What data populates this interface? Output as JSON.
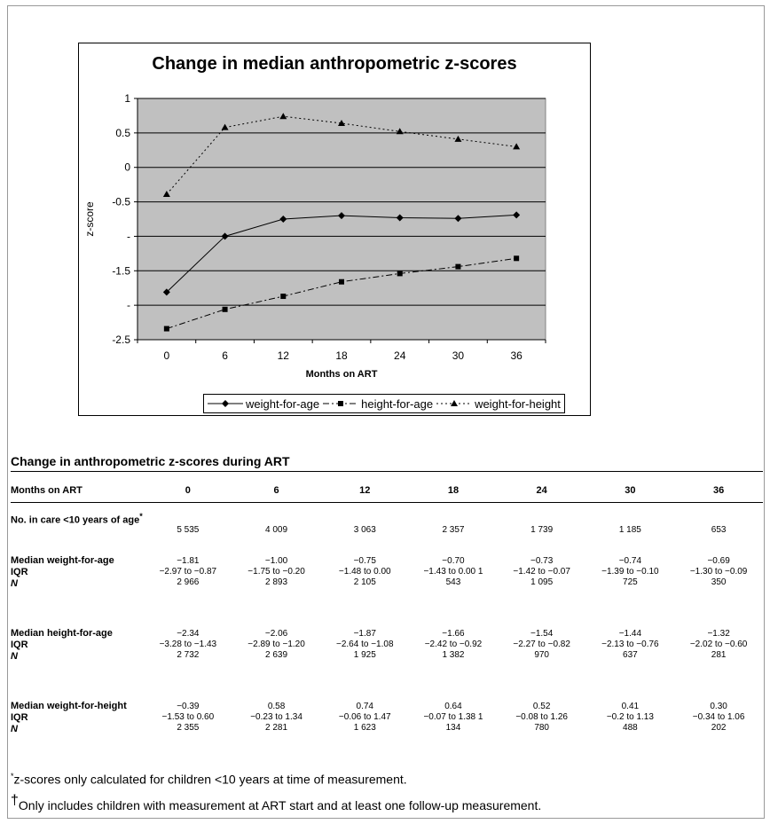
{
  "chart_data": {
    "type": "line",
    "title": "Change in median anthropometric z-scores",
    "xlabel": "Months on ART",
    "ylabel": "z-score",
    "x": [
      0,
      6,
      12,
      18,
      24,
      30,
      36
    ],
    "ylim": [
      -2.5,
      1
    ],
    "ytick_labels": [
      "1",
      "0.5",
      "0",
      "-0.5",
      "-",
      "-1.5",
      "-",
      "-2.5"
    ],
    "grid": true,
    "plot_background": "#c0c0c0",
    "series": [
      {
        "name": "weight-for-age",
        "values": [
          -1.81,
          -1.0,
          -0.75,
          -0.7,
          -0.73,
          -0.74,
          -0.69
        ],
        "marker": "diamond",
        "dash": "solid"
      },
      {
        "name": "height-for-age",
        "values": [
          -2.34,
          -2.06,
          -1.87,
          -1.66,
          -1.54,
          -1.44,
          -1.32
        ],
        "marker": "square",
        "dash": "dashdot"
      },
      {
        "name": "weight-for-height",
        "values": [
          -0.39,
          0.58,
          0.74,
          0.64,
          0.52,
          0.41,
          0.3
        ],
        "marker": "triangle",
        "dash": "dotted"
      }
    ],
    "legend_position": "bottom"
  },
  "table": {
    "title": "Change in anthropometric z-scores during ART",
    "header_label": "Months on ART",
    "columns": [
      "0",
      "6",
      "12",
      "18",
      "24",
      "30",
      "36"
    ],
    "rows": [
      {
        "label": "No. in care <10 years of age",
        "sup": "*",
        "values": [
          [
            "5 535"
          ],
          [
            "4 009"
          ],
          [
            "3 063"
          ],
          [
            "2 357"
          ],
          [
            "1 739"
          ],
          [
            "1 185"
          ],
          [
            "653"
          ]
        ]
      },
      {
        "label": "Median weight-for-age",
        "sub1": "IQR",
        "sub2": "N",
        "values": [
          [
            "−1.81",
            "−2.97 to −0.87",
            "2 966"
          ],
          [
            "−1.00",
            "−1.75 to −0.20",
            "2 893"
          ],
          [
            "−0.75",
            "−1.48 to 0.00",
            "2 105"
          ],
          [
            "−0.70",
            "−1.43 to 0.00 1",
            "543"
          ],
          [
            "−0.73",
            "−1.42 to −0.07",
            "1 095"
          ],
          [
            "−0.74",
            "−1.39 to −0.10",
            "725"
          ],
          [
            "−0.69",
            "−1.30 to −0.09",
            "350"
          ]
        ]
      },
      {
        "label": "Median height-for-age",
        "sub1": "IQR",
        "sub2": "N",
        "values": [
          [
            "−2.34",
            "−3.28 to −1.43",
            "2 732"
          ],
          [
            "−2.06",
            "−2.89 to −1.20",
            "2 639"
          ],
          [
            "−1.87",
            "−2.64 to −1.08",
            "1 925"
          ],
          [
            "−1.66",
            "−2.42 to −0.92",
            "1 382"
          ],
          [
            "−1.54",
            "−2.27 to −0.82",
            "970"
          ],
          [
            "−1.44",
            "−2.13 to −0.76",
            "637"
          ],
          [
            "−1.32",
            "−2.02 to −0.60",
            "281"
          ]
        ]
      },
      {
        "label": "Median weight-for-height",
        "sub1": "IQR",
        "sub2": "N",
        "values": [
          [
            "−0.39",
            "−1.53 to 0.60",
            "2 355"
          ],
          [
            "0.58",
            "−0.23 to 1.34",
            "2 281"
          ],
          [
            "0.74",
            "−0.06 to 1.47",
            "1 623"
          ],
          [
            "0.64",
            "−0.07 to 1.38 1",
            "134"
          ],
          [
            "0.52",
            "−0.08 to 1.26",
            "780"
          ],
          [
            "0.41",
            "−0.2 to 1.13",
            "488"
          ],
          [
            "0.30",
            "−0.34 to 1.06",
            "202"
          ]
        ]
      }
    ]
  },
  "footnotes": [
    {
      "mark": "*",
      "text": "z-scores only calculated for children <10 years at time of measurement."
    },
    {
      "mark": "†",
      "text": "Only includes children with measurement at ART start and at least one follow-up measurement."
    }
  ]
}
